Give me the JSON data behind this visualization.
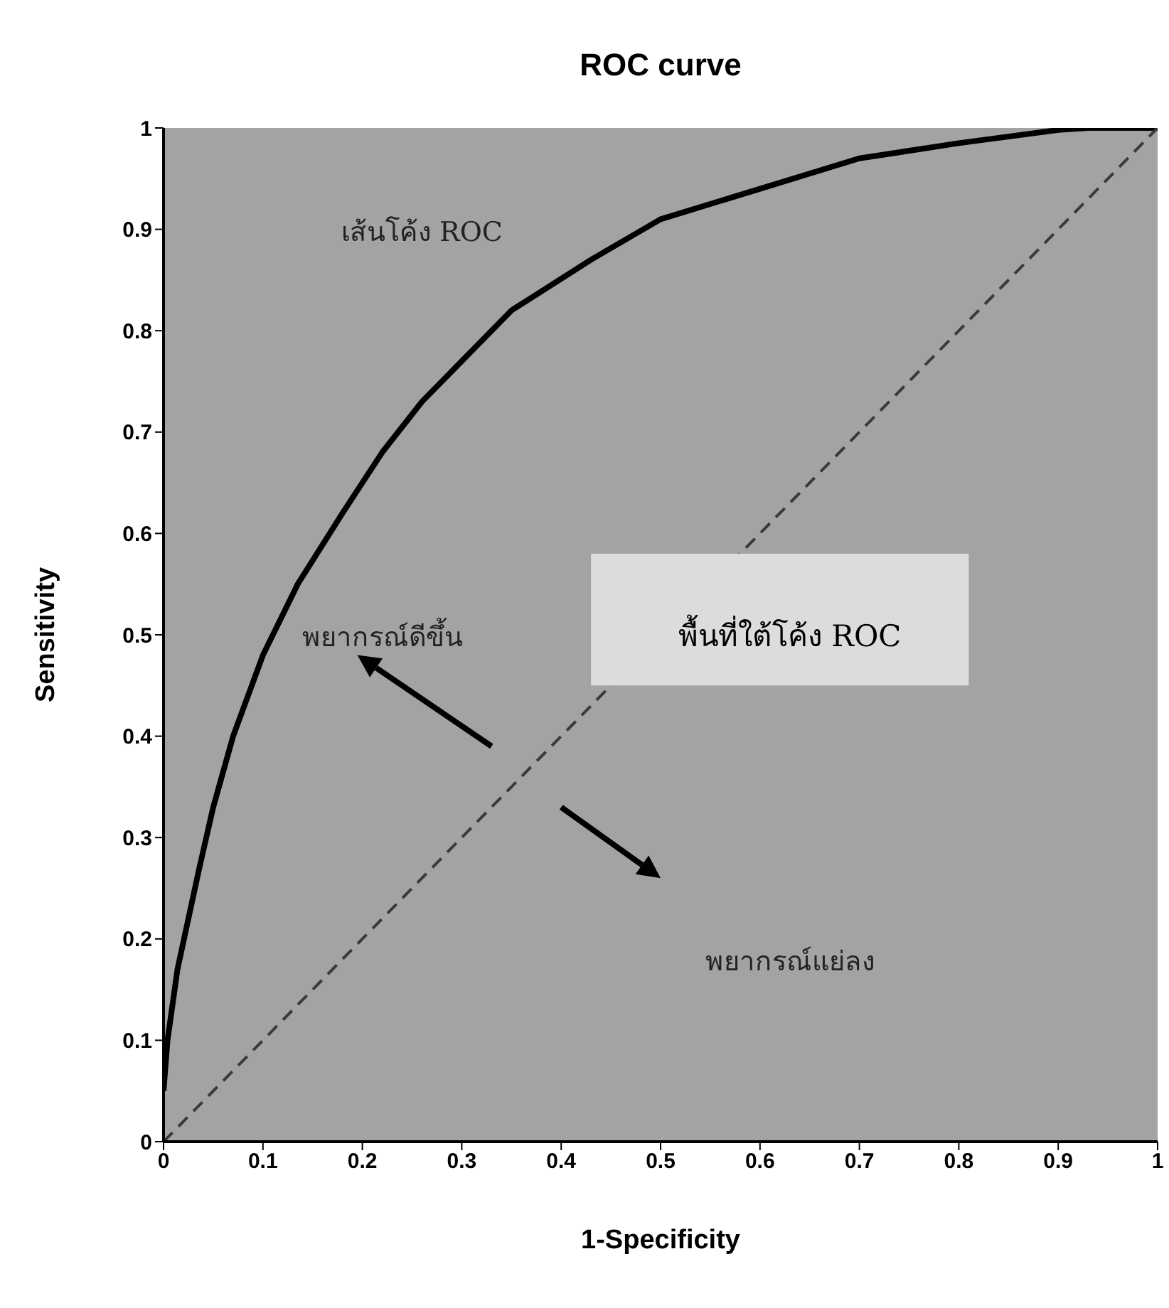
{
  "chart_data": {
    "type": "line",
    "title": "ROC curve",
    "xlabel": "1-Specificity",
    "ylabel": "Sensitivity",
    "series": [
      {
        "type": "line",
        "color": "#000000",
        "line_style": "solid",
        "x": [
          0,
          0.004,
          0.014,
          0.036,
          0.05,
          0.07,
          0.1,
          0.135,
          0.18,
          0.22,
          0.26,
          0.35,
          0.43,
          0.5,
          0.6,
          0.7,
          0.8,
          0.9,
          0.93,
          1
        ],
        "values": [
          0.05,
          0.1,
          0.17,
          0.27,
          0.33,
          0.4,
          0.48,
          0.55,
          0.62,
          0.68,
          0.73,
          0.82,
          0.87,
          0.91,
          0.94,
          0.97,
          0.985,
          0.998,
          1,
          1
        ]
      },
      {
        "type": "line",
        "color": "#3a3a3a",
        "line_style": "dashed",
        "x": [
          0,
          1
        ],
        "values": [
          0,
          1
        ]
      }
    ],
    "xlim": [
      0,
      1
    ],
    "ylim": [
      0,
      1
    ],
    "xticks": [
      0,
      0.1,
      0.2,
      0.3,
      0.4,
      0.5,
      0.6,
      0.7,
      0.8,
      0.9,
      1
    ],
    "yticks": [
      0,
      0.1,
      0.2,
      0.3,
      0.4,
      0.5,
      0.6,
      0.7,
      0.8,
      0.9,
      1
    ],
    "grid": false,
    "marker": "none",
    "annotations": [
      "เส้นโค้ง ROC",
      "พยากรณ์ดีขึ้น",
      "พื้นที่ใต้โค้ง ROC",
      "พยากรณ์แย่ลง"
    ]
  }
}
